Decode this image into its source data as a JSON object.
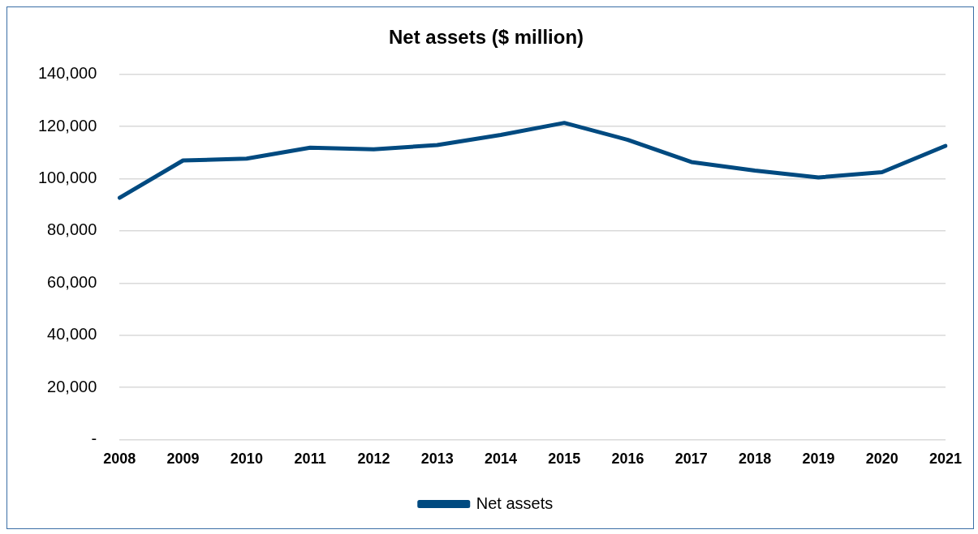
{
  "chart_data": {
    "type": "line",
    "title": "Net assets ($ million)",
    "categories": [
      "2008",
      "2009",
      "2010",
      "2011",
      "2012",
      "2013",
      "2014",
      "2015",
      "2016",
      "2017",
      "2018",
      "2019",
      "2020",
      "2021"
    ],
    "series": [
      {
        "name": "Net assets",
        "color": "#004a80",
        "values": [
          92700,
          107000,
          107700,
          111900,
          111300,
          112900,
          116800,
          121400,
          114900,
          106400,
          103100,
          100500,
          102500,
          112600
        ]
      }
    ],
    "ylim": [
      0,
      140000
    ],
    "yticks": [
      {
        "value": 0,
        "label": "-"
      },
      {
        "value": 20000,
        "label": "20,000"
      },
      {
        "value": 40000,
        "label": "40,000"
      },
      {
        "value": 60000,
        "label": "60,000"
      },
      {
        "value": 80000,
        "label": "80,000"
      },
      {
        "value": 100000,
        "label": "100,000"
      },
      {
        "value": 120000,
        "label": "120,000"
      },
      {
        "value": 140000,
        "label": "140,000"
      }
    ],
    "grid": "y",
    "legend": "bottom",
    "marker": "none",
    "line_style": "solid"
  }
}
